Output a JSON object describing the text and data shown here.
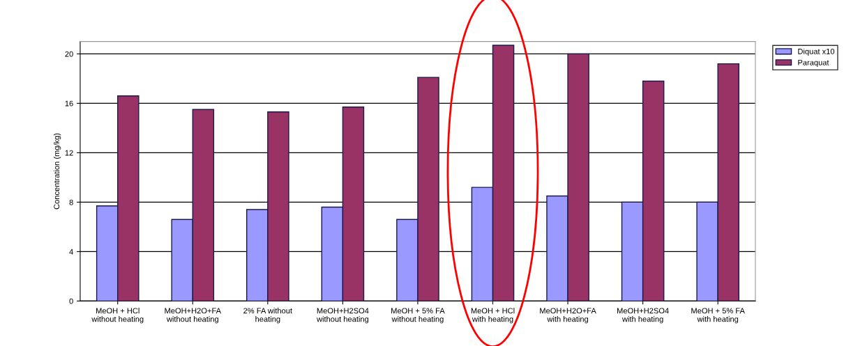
{
  "chart_data": {
    "type": "bar",
    "ylabel": "Concentration (mg/kg)",
    "categories": [
      "MeOH + HCl\nwithout heating",
      "MeOH+H2O+FA\nwithout heating",
      "2% FA without\nheating",
      "MeOH+H2SO4\nwithout heating",
      "MeOH + 5% FA\nwithout heating",
      "MeOH + HCl\nwith heating",
      "MeOH+H2O+FA\nwith heating",
      "MeOH+H2SO4\nwith heating",
      "MeOH + 5% FA\nwith heating"
    ],
    "series": [
      {
        "name": "Diquat x10",
        "color": "#9999ff",
        "values": [
          7.7,
          6.6,
          7.4,
          7.6,
          6.6,
          9.2,
          8.5,
          8.0,
          8.0
        ]
      },
      {
        "name": "Paraquat",
        "color": "#993366",
        "values": [
          16.6,
          15.5,
          15.3,
          15.7,
          18.1,
          20.7,
          20.0,
          17.8,
          19.2
        ]
      }
    ],
    "ylim": [
      0,
      21
    ],
    "yticks": [
      0,
      4,
      8,
      12,
      16,
      20
    ],
    "grid": "y",
    "legend": "top right"
  }
}
